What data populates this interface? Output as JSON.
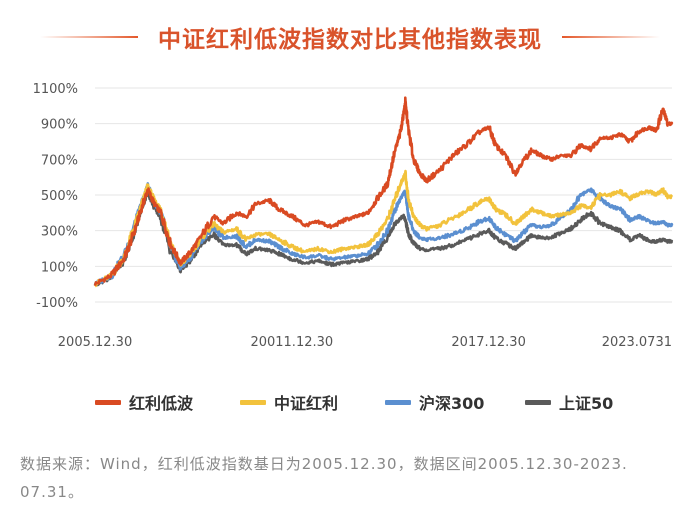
{
  "colors": {
    "title": "#d9532b",
    "hongli_dibo": "#d94a22",
    "zhongzheng_hongli": "#f2c23c",
    "hushen300": "#5b8fd0",
    "shangzheng50": "#5a5a5a",
    "axis_text": "#555555"
  },
  "chart_data": {
    "type": "line",
    "title": "中证红利低波指数对比其他指数表现",
    "xlabel": "",
    "ylabel": "",
    "ylim": [
      -100,
      1100
    ],
    "yticks": [
      "1100%",
      "900%",
      "700%",
      "500%",
      "300%",
      "100%",
      "-100%"
    ],
    "ytick_values": [
      1100,
      900,
      700,
      500,
      300,
      100,
      -100
    ],
    "xticks": [
      "2005.12.30",
      "20011.12.30",
      "2017.12.30",
      "2023.0731"
    ],
    "xtick_years": [
      2005.99,
      2011.99,
      2017.99,
      2023.58
    ],
    "xlim": [
      2005.99,
      2023.58
    ],
    "grid": true,
    "legend_position": "bottom",
    "series": [
      {
        "name": "红利低波",
        "color_key": "hongli_dibo",
        "x": [
          2005.99,
          2006.5,
          2006.9,
          2007.2,
          2007.4,
          2007.6,
          2007.8,
          2008.0,
          2008.3,
          2008.6,
          2008.9,
          2009.2,
          2009.6,
          2009.9,
          2010.3,
          2010.6,
          2010.9,
          2011.3,
          2011.6,
          2012.0,
          2012.4,
          2012.8,
          2013.2,
          2013.6,
          2014.0,
          2014.3,
          2014.6,
          2014.9,
          2015.1,
          2015.3,
          2015.4,
          2015.45,
          2015.55,
          2015.7,
          2015.9,
          2016.1,
          2016.5,
          2016.9,
          2017.3,
          2017.7,
          2018.0,
          2018.2,
          2018.5,
          2018.8,
          2019.0,
          2019.3,
          2019.6,
          2019.9,
          2020.2,
          2020.5,
          2020.8,
          2021.1,
          2021.4,
          2021.7,
          2022.0,
          2022.3,
          2022.6,
          2022.9,
          2023.1,
          2023.3,
          2023.45,
          2023.58
        ],
        "values": [
          0,
          50,
          150,
          300,
          420,
          530,
          450,
          400,
          220,
          120,
          180,
          260,
          380,
          340,
          400,
          380,
          450,
          470,
          420,
          380,
          330,
          350,
          320,
          360,
          380,
          400,
          480,
          560,
          720,
          850,
          960,
          1020,
          860,
          700,
          620,
          580,
          640,
          720,
          780,
          850,
          880,
          780,
          720,
          620,
          680,
          750,
          720,
          700,
          720,
          720,
          780,
          760,
          820,
          820,
          840,
          800,
          860,
          880,
          860,
          980,
          900,
          900
        ]
      },
      {
        "name": "中证红利",
        "color_key": "zhongzheng_hongli",
        "x": [
          2005.99,
          2006.5,
          2006.9,
          2007.2,
          2007.4,
          2007.6,
          2007.8,
          2008.0,
          2008.3,
          2008.6,
          2008.9,
          2009.2,
          2009.6,
          2009.9,
          2010.3,
          2010.6,
          2010.9,
          2011.3,
          2011.6,
          2012.0,
          2012.4,
          2012.8,
          2013.2,
          2013.6,
          2014.0,
          2014.3,
          2014.6,
          2014.9,
          2015.1,
          2015.3,
          2015.4,
          2015.45,
          2015.55,
          2015.7,
          2015.9,
          2016.1,
          2016.5,
          2016.9,
          2017.3,
          2017.7,
          2018.0,
          2018.2,
          2018.5,
          2018.8,
          2019.0,
          2019.3,
          2019.6,
          2019.9,
          2020.2,
          2020.5,
          2020.8,
          2021.1,
          2021.4,
          2021.7,
          2022.0,
          2022.3,
          2022.6,
          2022.9,
          2023.1,
          2023.3,
          2023.45,
          2023.58
        ],
        "values": [
          0,
          50,
          160,
          330,
          440,
          550,
          470,
          420,
          230,
          110,
          170,
          250,
          340,
          290,
          310,
          250,
          280,
          280,
          250,
          210,
          180,
          200,
          180,
          200,
          210,
          220,
          280,
          360,
          460,
          560,
          600,
          620,
          470,
          380,
          330,
          310,
          330,
          370,
          410,
          460,
          480,
          420,
          390,
          340,
          370,
          420,
          400,
          380,
          390,
          400,
          440,
          430,
          500,
          500,
          520,
          480,
          510,
          520,
          500,
          530,
          490,
          490
        ]
      },
      {
        "name": "沪深300",
        "color_key": "hushen300",
        "x": [
          2005.99,
          2006.5,
          2006.9,
          2007.2,
          2007.4,
          2007.6,
          2007.8,
          2008.0,
          2008.3,
          2008.6,
          2008.9,
          2009.2,
          2009.6,
          2009.9,
          2010.3,
          2010.6,
          2010.9,
          2011.3,
          2011.6,
          2012.0,
          2012.4,
          2012.8,
          2013.2,
          2013.6,
          2014.0,
          2014.3,
          2014.6,
          2014.9,
          2015.1,
          2015.3,
          2015.4,
          2015.45,
          2015.55,
          2015.7,
          2015.9,
          2016.1,
          2016.5,
          2016.9,
          2017.3,
          2017.7,
          2018.0,
          2018.2,
          2018.5,
          2018.8,
          2019.0,
          2019.3,
          2019.6,
          2019.9,
          2020.2,
          2020.5,
          2020.8,
          2021.1,
          2021.4,
          2021.7,
          2022.0,
          2022.3,
          2022.6,
          2022.9,
          2023.1,
          2023.3,
          2023.45,
          2023.58
        ],
        "values": [
          0,
          50,
          170,
          340,
          450,
          550,
          460,
          400,
          200,
          90,
          150,
          240,
          320,
          260,
          270,
          210,
          250,
          240,
          210,
          170,
          150,
          160,
          140,
          150,
          160,
          170,
          220,
          300,
          400,
          480,
          510,
          520,
          380,
          300,
          260,
          250,
          260,
          280,
          310,
          350,
          370,
          320,
          280,
          240,
          280,
          330,
          320,
          330,
          380,
          420,
          500,
          530,
          480,
          440,
          420,
          360,
          380,
          350,
          340,
          350,
          330,
          330
        ]
      },
      {
        "name": "上证50",
        "color_key": "shangzheng50",
        "x": [
          2005.99,
          2006.5,
          2006.9,
          2007.2,
          2007.4,
          2007.6,
          2007.8,
          2008.0,
          2008.3,
          2008.6,
          2008.9,
          2009.2,
          2009.6,
          2009.9,
          2010.3,
          2010.6,
          2010.9,
          2011.3,
          2011.6,
          2012.0,
          2012.4,
          2012.8,
          2013.2,
          2013.6,
          2014.0,
          2014.3,
          2014.6,
          2014.9,
          2015.1,
          2015.3,
          2015.4,
          2015.45,
          2015.55,
          2015.7,
          2015.9,
          2016.1,
          2016.5,
          2016.9,
          2017.3,
          2017.7,
          2018.0,
          2018.2,
          2018.5,
          2018.8,
          2019.0,
          2019.3,
          2019.6,
          2019.9,
          2020.2,
          2020.5,
          2020.8,
          2021.1,
          2021.4,
          2021.7,
          2022.0,
          2022.3,
          2022.6,
          2022.9,
          2023.1,
          2023.3,
          2023.45,
          2023.58
        ],
        "values": [
          0,
          40,
          140,
          300,
          420,
          520,
          430,
          370,
          180,
          80,
          130,
          220,
          280,
          220,
          220,
          170,
          200,
          190,
          170,
          140,
          120,
          130,
          110,
          120,
          130,
          140,
          180,
          260,
          330,
          370,
          380,
          360,
          280,
          230,
          200,
          190,
          200,
          220,
          250,
          280,
          300,
          260,
          230,
          200,
          230,
          270,
          260,
          260,
          290,
          310,
          360,
          400,
          340,
          320,
          300,
          250,
          270,
          240,
          240,
          250,
          240,
          240
        ]
      }
    ]
  },
  "legend": [
    {
      "label": "红利低波",
      "color_key": "hongli_dibo"
    },
    {
      "label": "中证红利",
      "color_key": "zhongzheng_hongli"
    },
    {
      "label": "沪深300",
      "color_key": "hushen300"
    },
    {
      "label": "上证50",
      "color_key": "shangzheng50"
    }
  ],
  "source_text": "数据来源：Wind，红利低波指数基日为2005.12.30，数据区间2005.12.30-2023. 07.31。"
}
